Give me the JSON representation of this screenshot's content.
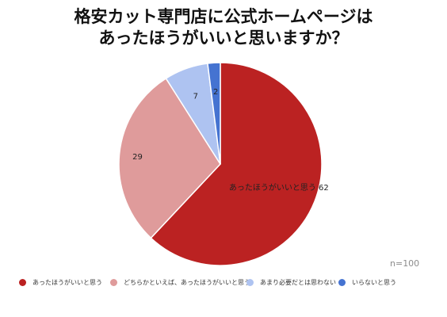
{
  "chart_data": {
    "type": "pie",
    "title_lines": [
      "格安カット専門店に公式ホームページは",
      "あったほうがいいと思いますか？"
    ],
    "slices": [
      {
        "label": "あったほうがいいと思う",
        "value": 62,
        "data_label": "あったほうがいいと思う 62",
        "color": "#bb2222"
      },
      {
        "label": "どちらかといえば、あったほうがいいと思う",
        "value": 29,
        "data_label": "29",
        "color": "#df9b9b"
      },
      {
        "label": "あまり必要だとは思わない",
        "value": 7,
        "data_label": "7",
        "color": "#aec3f1"
      },
      {
        "label": "いらないと思う",
        "value": 2,
        "data_label": "2",
        "color": "#4573d1"
      }
    ],
    "note": "n=100",
    "legend_position": "bottom"
  }
}
